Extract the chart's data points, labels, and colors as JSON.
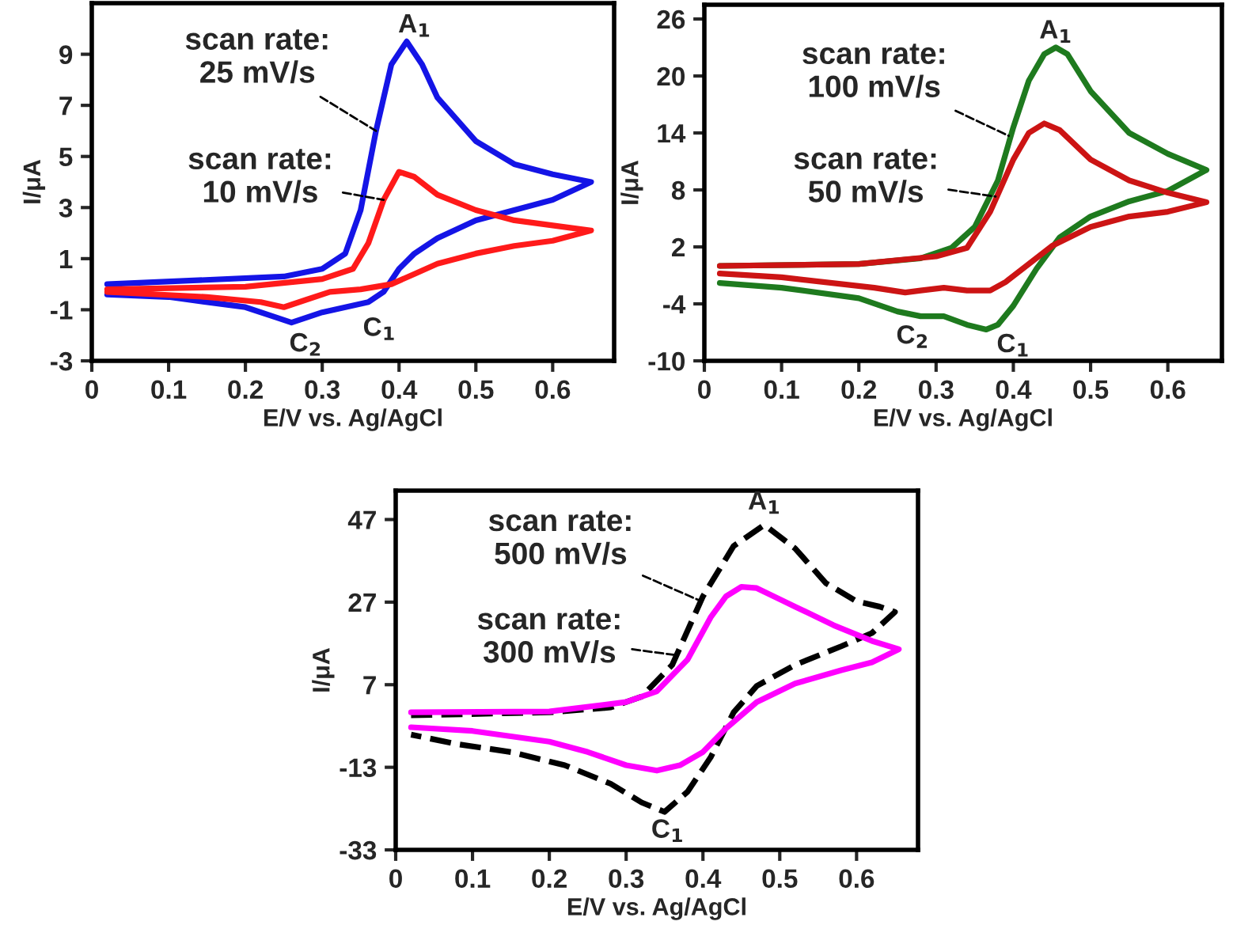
{
  "chart_data": [
    {
      "type": "line",
      "xlabel": "E/V vs. Ag/AgCl",
      "ylabel": "I/μA",
      "xlim": [
        0,
        0.68
      ],
      "ylim": [
        -3,
        11
      ],
      "xticks": [
        0,
        0.1,
        0.2,
        0.3,
        0.4,
        0.5,
        0.6
      ],
      "yticks": [
        -3,
        -1,
        1,
        3,
        5,
        7,
        9
      ],
      "legend": false,
      "grid": false,
      "series": [
        {
          "color": "#1414e6",
          "line_style": "solid",
          "x": [
            0.02,
            0.25,
            0.3,
            0.33,
            0.35,
            0.37,
            0.39,
            0.41,
            0.43,
            0.45,
            0.5,
            0.55,
            0.6,
            0.65,
            0.6,
            0.55,
            0.5,
            0.45,
            0.42,
            0.4,
            0.38,
            0.36,
            0.33,
            0.3,
            0.28,
            0.26,
            0.24,
            0.2,
            0.1,
            0.02
          ],
          "values": [
            0.0,
            0.3,
            0.6,
            1.2,
            2.9,
            6.0,
            8.6,
            9.5,
            8.6,
            7.3,
            5.6,
            4.7,
            4.3,
            4.0,
            3.3,
            2.9,
            2.5,
            1.8,
            1.2,
            0.6,
            -0.3,
            -0.7,
            -0.9,
            -1.1,
            -1.3,
            -1.5,
            -1.3,
            -0.9,
            -0.5,
            -0.4
          ]
        },
        {
          "color": "#ff1a1a",
          "line_style": "solid",
          "x": [
            0.02,
            0.2,
            0.3,
            0.34,
            0.36,
            0.38,
            0.4,
            0.42,
            0.45,
            0.5,
            0.55,
            0.6,
            0.65,
            0.6,
            0.55,
            0.5,
            0.45,
            0.42,
            0.39,
            0.35,
            0.31,
            0.28,
            0.25,
            0.22,
            0.15,
            0.02
          ],
          "values": [
            -0.2,
            -0.1,
            0.2,
            0.6,
            1.6,
            3.3,
            4.4,
            4.2,
            3.5,
            2.9,
            2.5,
            2.3,
            2.1,
            1.7,
            1.5,
            1.2,
            0.8,
            0.4,
            0.0,
            -0.2,
            -0.3,
            -0.6,
            -0.9,
            -0.7,
            -0.5,
            -0.3
          ]
        }
      ],
      "annotations": [
        {
          "text": "A$_{1}$",
          "x": 0.41,
          "y": 9.5
        },
        {
          "text": "C$_{2}$",
          "x": 0.26,
          "y": -1.5
        },
        {
          "text": "C$_{1}$",
          "x": 0.36,
          "y": -0.7
        },
        {
          "text": "scan rate:\n25 mV/s",
          "x": 0.37,
          "y": 6.0
        },
        {
          "text": "scan rate:\n10 mV/s",
          "x": 0.38,
          "y": 3.3
        }
      ]
    },
    {
      "type": "line",
      "xlabel": "E/V vs. Ag/AgCl",
      "ylabel": "I/μA",
      "xlim": [
        0,
        0.67
      ],
      "ylim": [
        -10,
        27.5
      ],
      "xticks": [
        0,
        0.1,
        0.2,
        0.3,
        0.4,
        0.5,
        0.6
      ],
      "yticks": [
        -10,
        -4,
        2,
        8,
        14,
        20,
        26
      ],
      "legend": false,
      "grid": false,
      "series": [
        {
          "color": "#1e7a1e",
          "line_style": "solid",
          "x": [
            0.02,
            0.2,
            0.28,
            0.32,
            0.35,
            0.38,
            0.4,
            0.42,
            0.44,
            0.455,
            0.47,
            0.5,
            0.55,
            0.6,
            0.65,
            0.6,
            0.55,
            0.5,
            0.46,
            0.43,
            0.4,
            0.38,
            0.365,
            0.34,
            0.31,
            0.28,
            0.25,
            0.2,
            0.1,
            0.02
          ],
          "values": [
            0.0,
            0.2,
            0.8,
            1.9,
            4.1,
            9.0,
            14.6,
            19.5,
            22.3,
            23.0,
            22.3,
            18.4,
            14.0,
            11.8,
            10.1,
            7.9,
            6.8,
            5.2,
            3.0,
            -0.3,
            -4.2,
            -6.2,
            -6.7,
            -6.2,
            -5.3,
            -5.3,
            -4.8,
            -3.4,
            -2.3,
            -1.8
          ]
        },
        {
          "color": "#cc1414",
          "line_style": "solid",
          "x": [
            0.02,
            0.2,
            0.3,
            0.34,
            0.37,
            0.4,
            0.42,
            0.44,
            0.46,
            0.5,
            0.55,
            0.6,
            0.65,
            0.6,
            0.55,
            0.5,
            0.45,
            0.42,
            0.39,
            0.37,
            0.34,
            0.31,
            0.28,
            0.26,
            0.22,
            0.1,
            0.02
          ],
          "values": [
            0.0,
            0.2,
            1.0,
            1.9,
            5.7,
            11.2,
            14.0,
            15.0,
            14.3,
            11.2,
            9.0,
            7.7,
            6.7,
            5.7,
            5.2,
            4.1,
            2.1,
            0.2,
            -1.7,
            -2.6,
            -2.6,
            -2.3,
            -2.6,
            -2.8,
            -2.3,
            -1.2,
            -0.8
          ]
        }
      ],
      "annotations": [
        {
          "text": "A$_{1}$",
          "x": 0.455,
          "y": 23.0
        },
        {
          "text": "C$_{2}$",
          "x": 0.28,
          "y": -5.3
        },
        {
          "text": "C$_{1}$",
          "x": 0.365,
          "y": -6.7
        },
        {
          "text": "scan rate:\n100 mV/s",
          "x": 0.394,
          "y": 13.7
        },
        {
          "text": "scan rate:\n50 mV/s",
          "x": 0.377,
          "y": 7.3
        }
      ]
    },
    {
      "type": "line",
      "xlabel": "E/V vs. Ag/AgCl",
      "ylabel": "I/μA",
      "xlim": [
        0,
        0.68
      ],
      "ylim": [
        -33,
        54
      ],
      "xticks": [
        0,
        0.1,
        0.2,
        0.3,
        0.4,
        0.5,
        0.6
      ],
      "yticks": [
        -33,
        -13,
        7,
        27,
        47
      ],
      "legend": false,
      "grid": false,
      "series": [
        {
          "color": "#000000",
          "line_style": "dashed",
          "x": [
            0.02,
            0.2,
            0.28,
            0.32,
            0.36,
            0.4,
            0.44,
            0.48,
            0.52,
            0.56,
            0.6,
            0.63,
            0.65,
            0.62,
            0.58,
            0.52,
            0.47,
            0.44,
            0.41,
            0.38,
            0.35,
            0.32,
            0.28,
            0.22,
            0.15,
            0.08,
            0.02
          ],
          "values": [
            -0.4,
            0.3,
            1.5,
            4.1,
            11.8,
            28.4,
            40.6,
            45.7,
            40.0,
            31.6,
            27.2,
            25.9,
            24.6,
            19.5,
            16.3,
            11.8,
            6.7,
            0.3,
            -10.6,
            -18.9,
            -23.8,
            -21.5,
            -17.0,
            -12.5,
            -9.3,
            -7.4,
            -5.1
          ]
        },
        {
          "color": "#ff00ff",
          "line_style": "solid",
          "x": [
            0.02,
            0.2,
            0.3,
            0.34,
            0.38,
            0.41,
            0.43,
            0.45,
            0.47,
            0.52,
            0.57,
            0.62,
            0.655,
            0.62,
            0.58,
            0.52,
            0.47,
            0.43,
            0.4,
            0.37,
            0.34,
            0.3,
            0.25,
            0.2,
            0.1,
            0.02
          ],
          "values": [
            0.3,
            0.5,
            2.8,
            5.4,
            13.1,
            23.3,
            28.4,
            30.7,
            30.4,
            25.9,
            21.4,
            17.6,
            15.6,
            12.4,
            10.5,
            7.3,
            2.8,
            -3.6,
            -9.3,
            -12.5,
            -13.8,
            -12.5,
            -9.3,
            -6.8,
            -4.2,
            -3.3
          ]
        }
      ],
      "annotations": [
        {
          "text": "A$_{1}$",
          "x": 0.48,
          "y": 45.7
        },
        {
          "text": "C$_{1}$",
          "x": 0.35,
          "y": -23.8
        },
        {
          "text": "scan rate:\n500 mV/s",
          "x": 0.398,
          "y": 27.2
        },
        {
          "text": "scan rate:\n300 mV/s",
          "x": 0.367,
          "y": 14.1
        }
      ]
    }
  ]
}
